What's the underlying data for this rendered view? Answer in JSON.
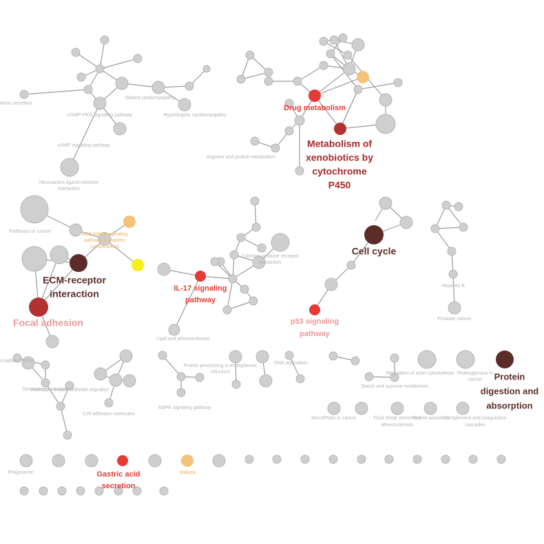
{
  "nodes": [
    {
      "label": [
        "Drug metabolism"
      ],
      "color": "#e53a35"
    },
    {
      "label": [
        "Metabolism of",
        "xenobiotics by",
        "cytochrome",
        "P450"
      ],
      "color": "#b23232"
    },
    {
      "label": [
        "Cell cycle"
      ],
      "color": "#5c2c28"
    },
    {
      "label": [
        "ECM-receptor",
        "interaction"
      ],
      "color": "#5c2c28"
    },
    {
      "label": [
        "Focal adhesion"
      ],
      "color": "#b23232"
    },
    {
      "label": [
        "IL-17 signaling",
        "pathway"
      ],
      "color": "#e53a35"
    },
    {
      "label": [
        "p53 signaling",
        "pathway"
      ],
      "color": "#e53a35"
    },
    {
      "label": [
        "Protein",
        "digestion and",
        "absorption"
      ],
      "color": "#5c2c28"
    },
    {
      "label": [
        "Gastric acid",
        "secretion"
      ],
      "color": "#e53a35"
    },
    {
      "label": [
        "Malaria"
      ],
      "color": "#f5c27a"
    },
    {
      "label": [
        "AGE-RAGE signaling",
        "pathway in diabetic",
        "complications"
      ],
      "color": "#f5c27a"
    },
    {
      "color": "#f5ef1a"
    },
    {
      "color": "#f5c27a"
    },
    {
      "label": [
        "cGMP-PKG signaling pathway"
      ]
    },
    {
      "label": [
        "cAMP signaling pathway"
      ]
    },
    {
      "label": [
        "Neuroactive ligand-receptor",
        "interaction"
      ]
    },
    {
      "label": [
        "Dilated cardiomyopathy"
      ]
    },
    {
      "label": [
        "Hypertrophic cardiomyopathy"
      ]
    },
    {
      "label": [
        "Renin secretion"
      ]
    },
    {
      "label": [
        "Arginine and proline metabolism"
      ]
    },
    {
      "label": [
        "Pathways in cancer"
      ]
    },
    {
      "label": [
        "Prostate cancer"
      ]
    },
    {
      "label": [
        "Hepatitis B"
      ]
    },
    {
      "label": [
        "Cell adhesion molecules"
      ]
    },
    {
      "label": [
        "AMPK signaling pathway"
      ]
    },
    {
      "label": [
        "Protein processing in endoplasmic",
        "reticulum"
      ]
    },
    {
      "label": [
        "DNA replication"
      ]
    },
    {
      "label": [
        "Circadian rhythm"
      ]
    },
    {
      "label": [
        "Serotonergic synapse"
      ]
    },
    {
      "label": [
        "Leukocyte transendothelial migration"
      ]
    },
    {
      "label": [
        "Phagosome"
      ]
    },
    {
      "label": [
        "MicroRNAs in cancer"
      ]
    },
    {
      "label": [
        "Complement and coagulation",
        "cascades"
      ]
    },
    {
      "label": [
        "Fluid shear stress and",
        "atherosclerosis"
      ]
    },
    {
      "label": [
        "Platelet activation"
      ]
    },
    {
      "label": [
        "Cytokine-cytokine receptor",
        "interaction"
      ]
    },
    {
      "label": [
        "Lipid and atherosclerosis"
      ]
    },
    {
      "label": [
        "Starch and sucrose metabolism"
      ]
    },
    {
      "label": [
        "Regulation of actin cytoskeleton"
      ]
    },
    {
      "label": [
        "Proteoglycans in",
        "cancer"
      ]
    }
  ]
}
